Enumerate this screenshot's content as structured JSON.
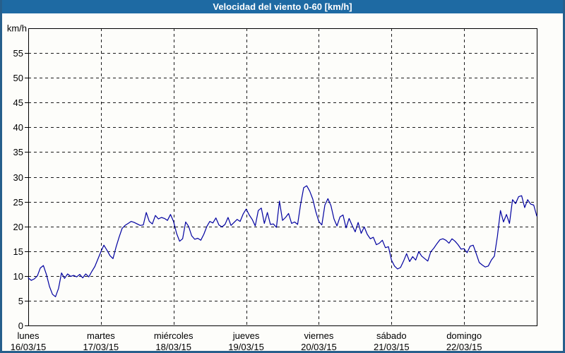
{
  "title_bar": {
    "title": "Velocidad del viento 0-60 [km/h]"
  },
  "colors": {
    "titlebar_bg": "#1E6AA3",
    "page_border": "#265F8C",
    "background": "#FDFDFA",
    "title_text": "#FFFFFF",
    "line": "#0000A0",
    "grid": "#1A1A1A",
    "frame": "#000000",
    "label_text": "#000000"
  },
  "chart_data": {
    "type": "line",
    "title": "Velocidad del viento 0-60 [km/h]",
    "ylabel": "km/h",
    "xlabel": "",
    "ylim": [
      0,
      60
    ],
    "y_tick_step": 5,
    "y_tick_labels": [
      "0",
      "5",
      "10",
      "15",
      "20",
      "25",
      "30",
      "35",
      "40",
      "45",
      "50",
      "55"
    ],
    "grid": true,
    "legend": "none",
    "x_days": [
      {
        "name": "lunes",
        "date": "16/03/15"
      },
      {
        "name": "martes",
        "date": "17/03/15"
      },
      {
        "name": "miércoles",
        "date": "18/03/15"
      },
      {
        "name": "jueves",
        "date": "19/03/15"
      },
      {
        "name": "viernes",
        "date": "20/03/15"
      },
      {
        "name": "sábado",
        "date": "21/03/15"
      },
      {
        "name": "domingo",
        "date": "22/03/15"
      }
    ],
    "points_per_day": 24,
    "series_name": "Velocidad del viento",
    "values": [
      9.6,
      9.1,
      9.4,
      10.0,
      11.6,
      12.1,
      10.3,
      7.9,
      6.3,
      5.8,
      7.5,
      10.6,
      9.5,
      10.4,
      9.9,
      10.1,
      9.8,
      10.3,
      9.6,
      10.4,
      9.8,
      10.9,
      11.9,
      13.4,
      14.9,
      16.2,
      15.2,
      14.1,
      13.5,
      15.8,
      17.8,
      19.6,
      20.2,
      20.6,
      21.0,
      20.8,
      20.5,
      20.2,
      20.3,
      22.8,
      21.0,
      20.5,
      22.2,
      21.5,
      21.8,
      21.6,
      21.2,
      22.4,
      21.0,
      18.6,
      17.0,
      17.5,
      20.9,
      20.0,
      18.1,
      17.4,
      17.6,
      17.2,
      18.4,
      20.0,
      21.0,
      20.7,
      21.7,
      20.3,
      19.9,
      20.4,
      21.8,
      20.2,
      20.8,
      21.4,
      21.0,
      22.5,
      23.5,
      22.3,
      21.4,
      20.1,
      23.2,
      23.7,
      20.6,
      22.8,
      20.4,
      20.5,
      19.8,
      25.1,
      21.2,
      21.8,
      22.6,
      20.6,
      20.9,
      20.4,
      24.5,
      27.8,
      28.2,
      27.1,
      25.5,
      23.0,
      21.0,
      20.3,
      24.3,
      25.6,
      24.2,
      21.5,
      20.1,
      21.9,
      22.3,
      19.7,
      21.6,
      20.2,
      18.9,
      20.8,
      18.6,
      19.9,
      18.4,
      17.5,
      17.8,
      16.3,
      16.6,
      17.2,
      15.7,
      15.9,
      13.2,
      12.0,
      11.4,
      11.7,
      13.0,
      14.5,
      12.9,
      13.9,
      13.2,
      14.9,
      14.0,
      13.5,
      13.0,
      14.9,
      15.6,
      16.5,
      17.3,
      17.5,
      17.2,
      16.6,
      17.5,
      17.0,
      16.3,
      15.4,
      15.5,
      14.7,
      16.0,
      16.2,
      14.5,
      12.7,
      12.2,
      11.8,
      12.0,
      13.2,
      14.0,
      18.0,
      23.2,
      20.9,
      22.4,
      20.6,
      25.4,
      24.6,
      26.0,
      26.2,
      23.8,
      25.4,
      24.5,
      24.3,
      22.1
    ]
  }
}
